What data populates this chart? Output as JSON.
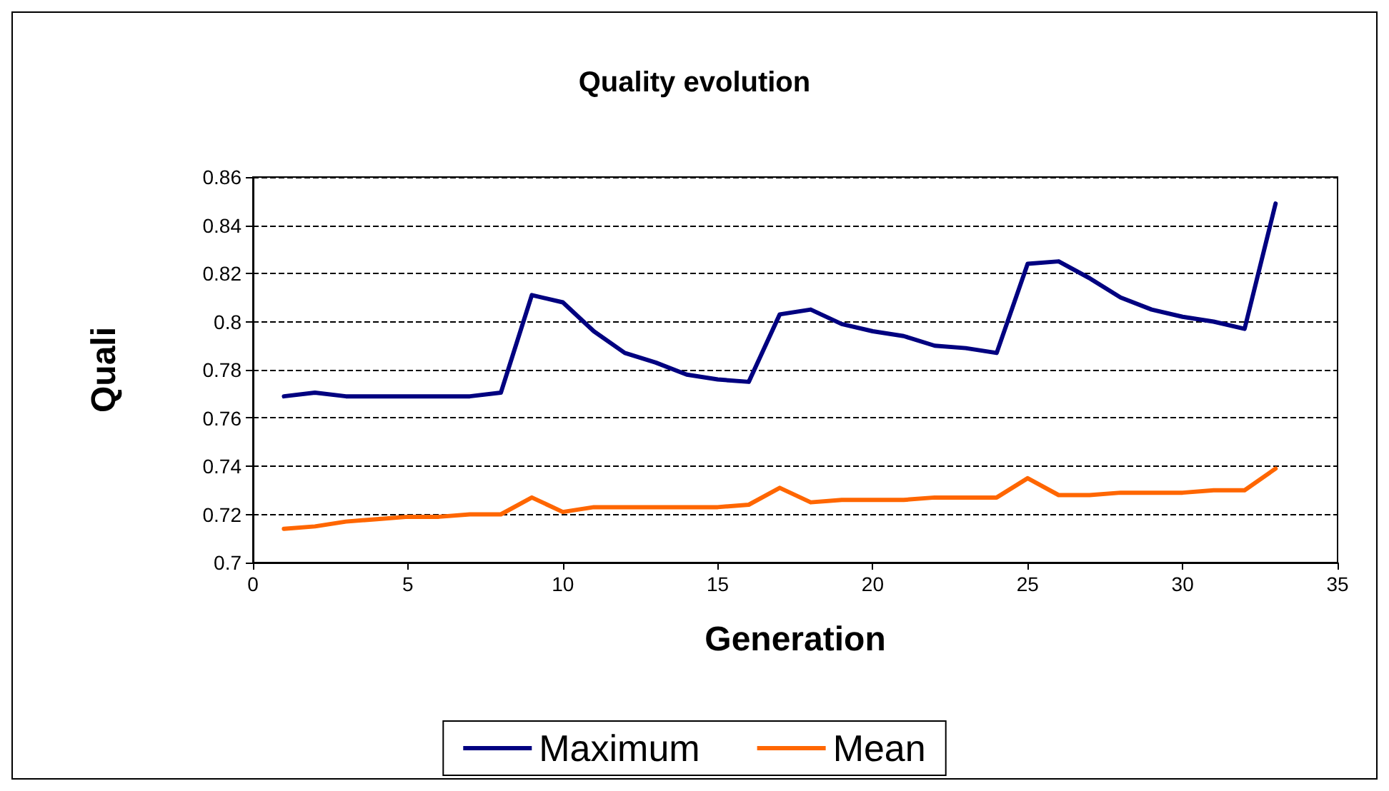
{
  "chart_data": {
    "type": "line",
    "title": "Quality evolution",
    "xlabel": "Generation",
    "ylabel": "Quali",
    "x": [
      1,
      2,
      3,
      4,
      5,
      6,
      7,
      8,
      9,
      10,
      11,
      12,
      13,
      14,
      15,
      16,
      17,
      18,
      19,
      20,
      21,
      22,
      23,
      24,
      25,
      26,
      27,
      28,
      29,
      30,
      31,
      32,
      33
    ],
    "series": [
      {
        "name": "Maximum",
        "color": "#000080",
        "values": [
          0.769,
          0.7705,
          0.769,
          0.769,
          0.769,
          0.769,
          0.769,
          0.7705,
          0.811,
          0.808,
          0.796,
          0.787,
          0.783,
          0.778,
          0.776,
          0.775,
          0.803,
          0.805,
          0.799,
          0.796,
          0.794,
          0.79,
          0.789,
          0.787,
          0.824,
          0.825,
          0.818,
          0.81,
          0.805,
          0.802,
          0.8,
          0.797,
          0.849
        ]
      },
      {
        "name": "Mean",
        "color": "#ff6600",
        "values": [
          0.714,
          0.715,
          0.717,
          0.718,
          0.719,
          0.719,
          0.72,
          0.72,
          0.727,
          0.721,
          0.723,
          0.723,
          0.723,
          0.723,
          0.723,
          0.724,
          0.731,
          0.725,
          0.726,
          0.726,
          0.726,
          0.727,
          0.727,
          0.727,
          0.735,
          0.728,
          0.728,
          0.729,
          0.729,
          0.729,
          0.73,
          0.73,
          0.739
        ]
      }
    ],
    "xlim": [
      0,
      35
    ],
    "xticks": [
      0,
      5,
      10,
      15,
      20,
      25,
      30,
      35
    ],
    "ylim": [
      0.7,
      0.86
    ],
    "yticks": [
      0.7,
      0.72,
      0.74,
      0.76,
      0.78,
      0.8,
      0.82,
      0.84,
      0.86
    ],
    "grid": "y",
    "legend": "bottom",
    "marker": "none",
    "line_style": "solid"
  }
}
